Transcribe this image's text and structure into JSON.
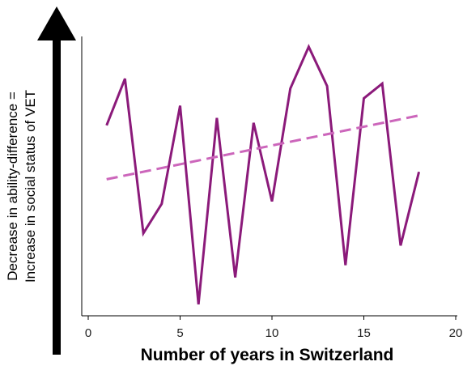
{
  "chart_data": {
    "type": "line",
    "xlabel": "Number of years in Switzerland",
    "ylabel_line1": "Decrease in ability-difference =",
    "ylabel_line2": "Increase in social status of VET",
    "xlim": [
      0,
      20
    ],
    "x_ticks": [
      "0",
      "5",
      "10",
      "15",
      "20"
    ],
    "y_ticks_shown": false,
    "grid": false,
    "colors": {
      "series": "#8b1a7a",
      "trend": "#cc66bb",
      "axis": "#000000"
    },
    "series": [
      {
        "style": "solid",
        "x": [
          1,
          2,
          3,
          4,
          5,
          6,
          7,
          8,
          9,
          10,
          11,
          12,
          13,
          14,
          15,
          16,
          17,
          18
        ],
        "values": [
          7.5,
          9.4,
          3.1,
          4.3,
          8.3,
          0.2,
          7.8,
          1.3,
          7.6,
          4.4,
          9.0,
          10.7,
          9.1,
          1.8,
          8.6,
          9.2,
          2.6,
          5.6
        ]
      },
      {
        "style": "dashed",
        "x": [
          1,
          18
        ],
        "values": [
          5.3,
          7.9
        ]
      }
    ]
  }
}
